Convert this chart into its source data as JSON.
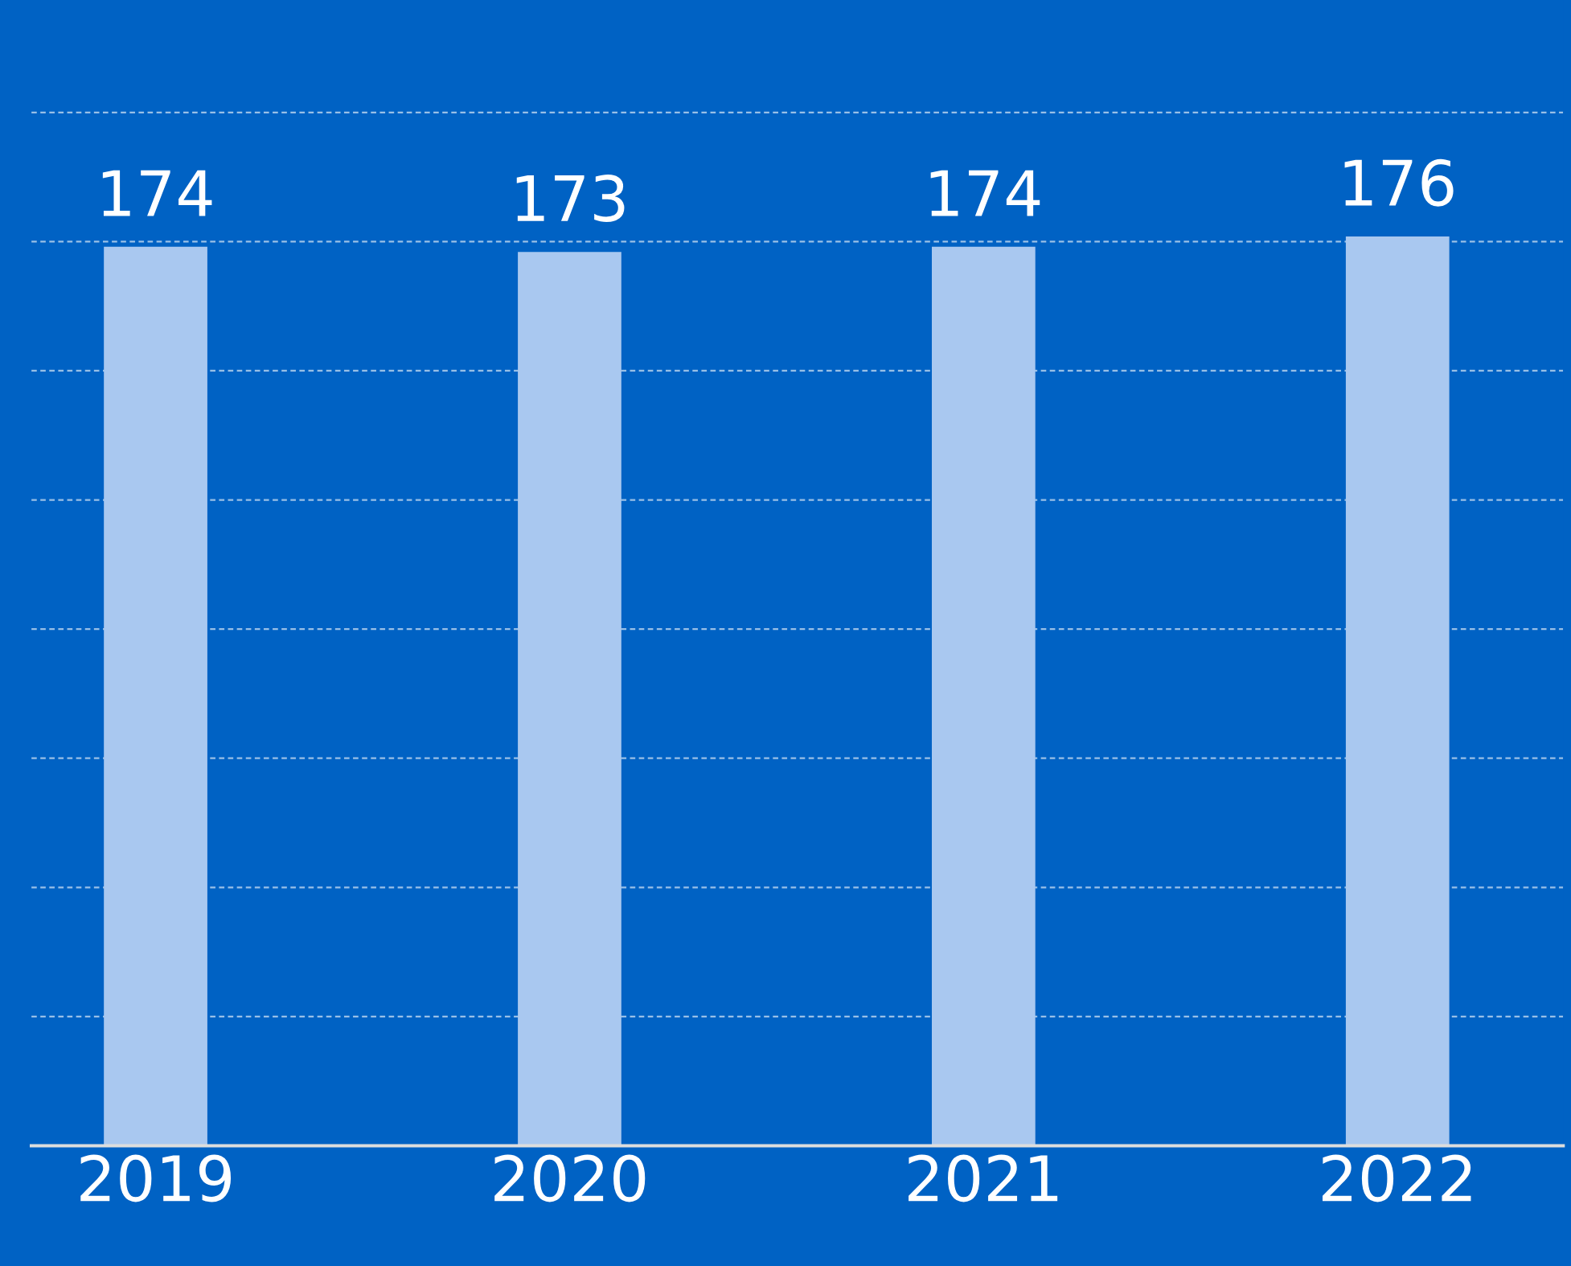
{
  "chart_data": {
    "type": "bar",
    "categories": [
      "2019",
      "2020",
      "2021",
      "2022"
    ],
    "values": [
      174,
      173,
      174,
      176
    ],
    "color": "#a9c8f0",
    "data_labels": true,
    "grid": "y",
    "tick_labels": "x"
  }
}
